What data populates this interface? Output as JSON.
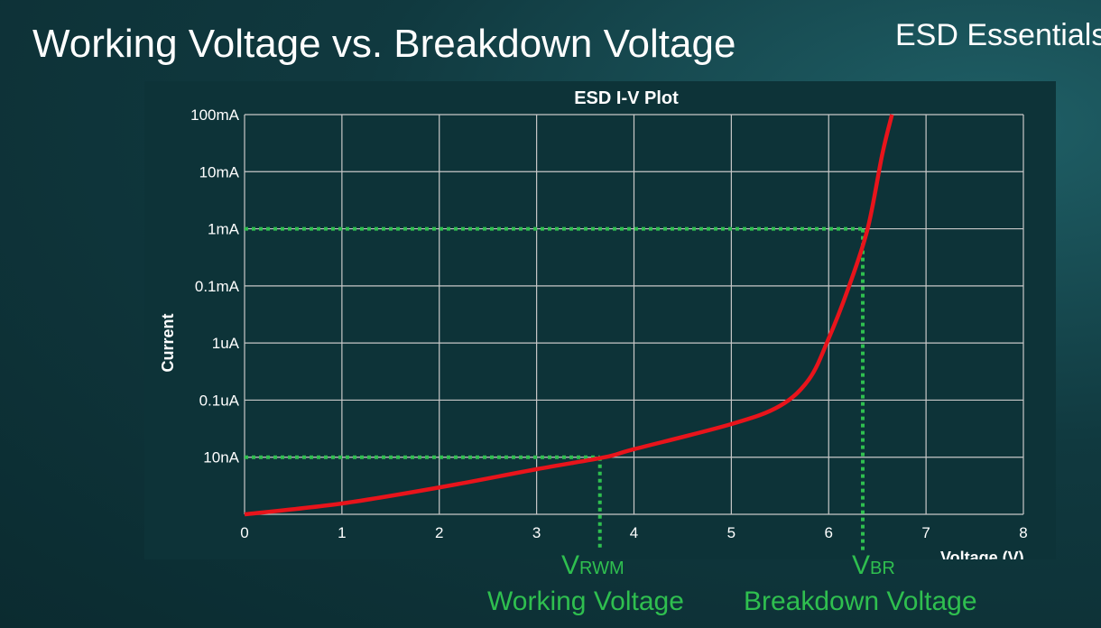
{
  "slide": {
    "title": "Working Voltage vs. Breakdown Voltage",
    "brand": "ESD Essentials"
  },
  "annotations": {
    "vrwm_main": "V",
    "vrwm_sub": "RWM",
    "vrwm_label": "Working Voltage",
    "vbr_main": "V",
    "vbr_sub": "BR",
    "vbr_label": "Breakdown Voltage"
  },
  "chart_data": {
    "type": "line",
    "title": "ESD I-V Plot",
    "xlabel": "Voltage (V)",
    "ylabel": "Current",
    "xlim": [
      0,
      8
    ],
    "xticks": [
      "0",
      "1",
      "2",
      "3",
      "4",
      "5",
      "6",
      "7",
      "8"
    ],
    "yscale": "log (evenly spaced tick labels)",
    "yticks": [
      "",
      "10nA",
      "0.1uA",
      "1uA",
      "0.1mA",
      "1mA",
      "10mA",
      "100mA"
    ],
    "grid": true,
    "series": [
      {
        "color": "#e8141b",
        "x": [
          0,
          1,
          2,
          3,
          3.7,
          4,
          5,
          5.5,
          5.8,
          6,
          6.2,
          6.4,
          6.55,
          6.65
        ],
        "y_tick_index": [
          0,
          0.19,
          0.47,
          0.79,
          1.0,
          1.14,
          1.58,
          1.9,
          2.37,
          3.08,
          3.95,
          5.0,
          6.3,
          7.0
        ]
      }
    ],
    "reference_lines": [
      {
        "name": "VRWM",
        "x": 3.65,
        "y_label": "10nA",
        "color": "#2fbf4f"
      },
      {
        "name": "VBR",
        "x": 6.35,
        "y_label": "1mA",
        "color": "#2fbf4f"
      }
    ]
  }
}
